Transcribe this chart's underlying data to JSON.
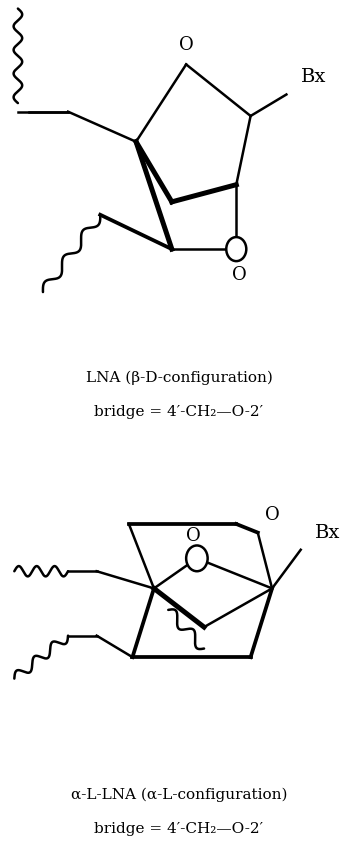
{
  "bg_color": "#ffffff",
  "text_color": "#000000",
  "lna_label1": "LNA (β-D-configuration)",
  "lna_label2": "bridge = 4′-CH₂—O-2′",
  "alna_label1": "α-L-LNA (α-L-configuration)",
  "alna_label2": "bridge = 4′-CH₂—O-2′",
  "line_width": 1.8,
  "figsize": [
    3.58,
    8.59
  ],
  "dpi": 100
}
